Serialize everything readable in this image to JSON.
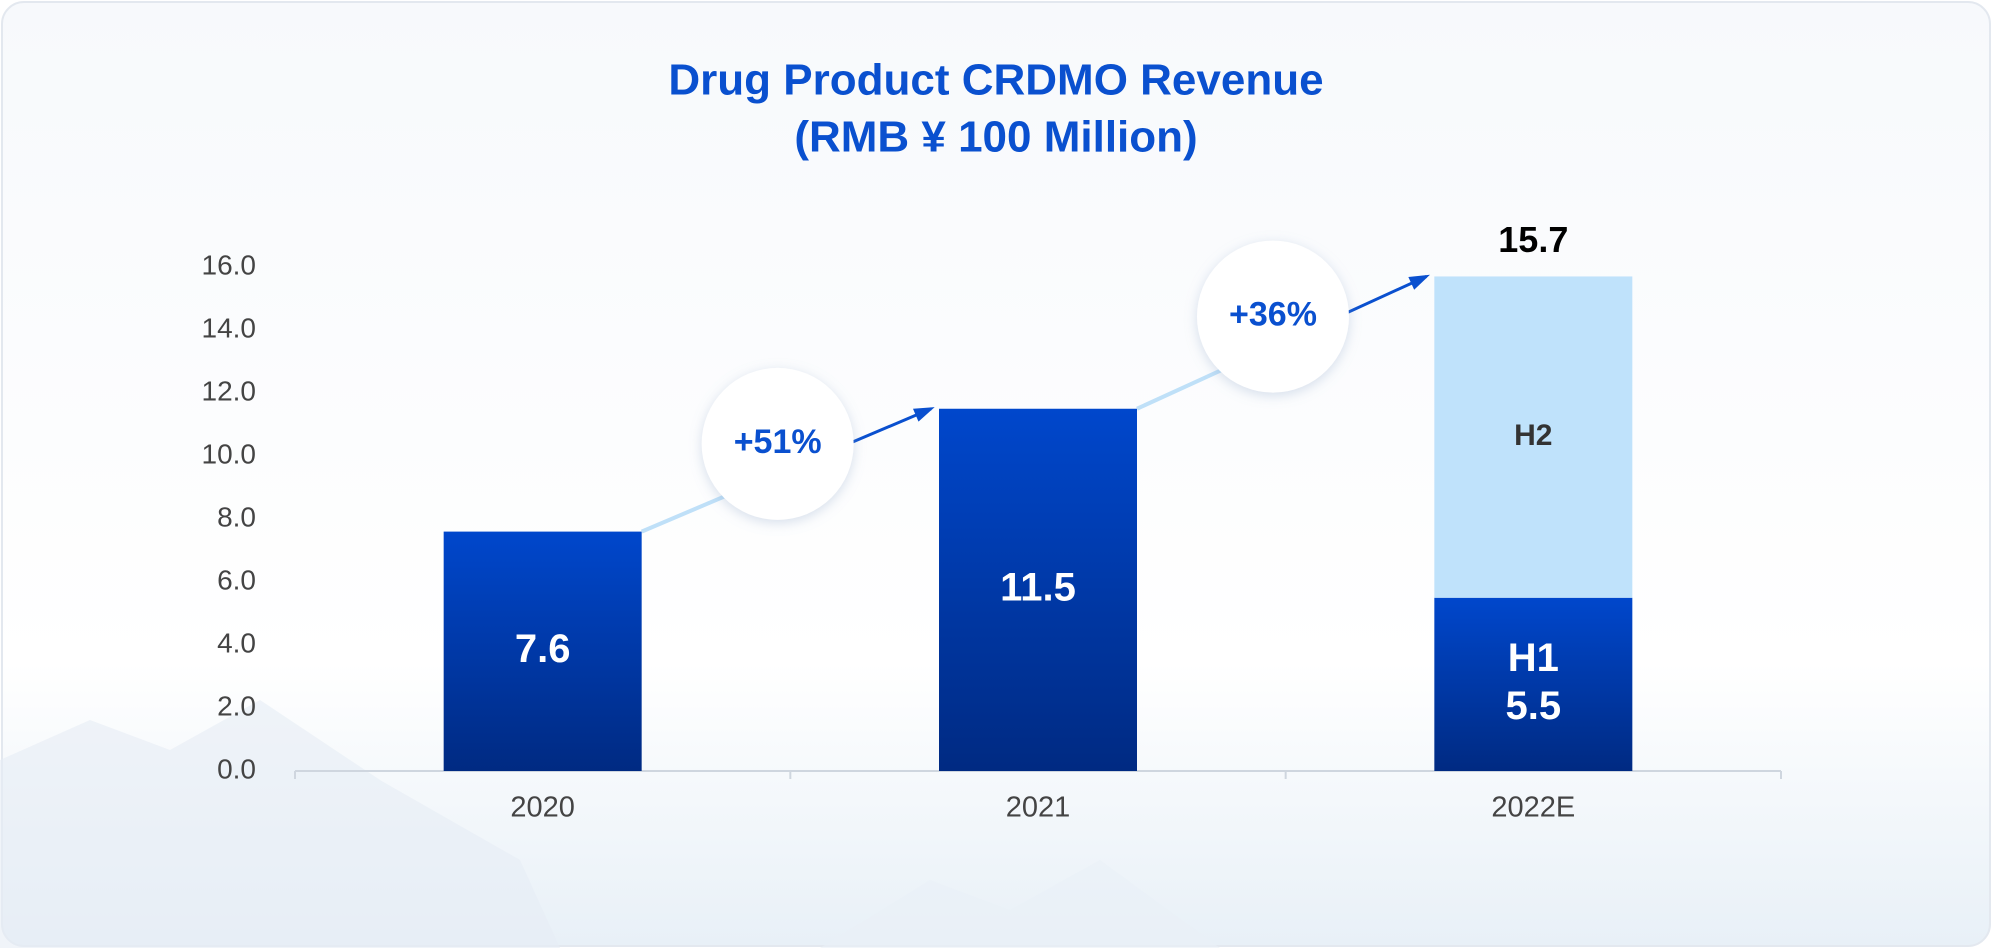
{
  "chart_data": {
    "type": "stacked_bar",
    "title": [
      "Drug Product CRDMO Revenue",
      "(RMB ¥ 100 Million)"
    ],
    "categories": [
      "2020",
      "2021",
      "2022E"
    ],
    "series": [
      {
        "name": "H1",
        "color": "#0047cc",
        "values": [
          7.6,
          11.5,
          5.5
        ]
      },
      {
        "name": "H2",
        "color": "#bfe2fb",
        "values": [
          null,
          null,
          10.2
        ]
      }
    ],
    "totals": [
      null,
      null,
      15.7
    ],
    "growth_labels": [
      "+51%",
      "+36%"
    ],
    "ylim": [
      0,
      16
    ],
    "yticks": [
      {
        "value": 0,
        "label": "0.0"
      },
      {
        "value": 2,
        "label": "2.0"
      },
      {
        "value": 4,
        "label": "4.0"
      },
      {
        "value": 6,
        "label": "6.0"
      },
      {
        "value": 8,
        "label": "8.0"
      },
      {
        "value": 10,
        "label": "10.0"
      },
      {
        "value": 12,
        "label": "12.0"
      },
      {
        "value": 14,
        "label": "14.0"
      },
      {
        "value": 16,
        "label": "16.0"
      }
    ],
    "grid": false
  }
}
